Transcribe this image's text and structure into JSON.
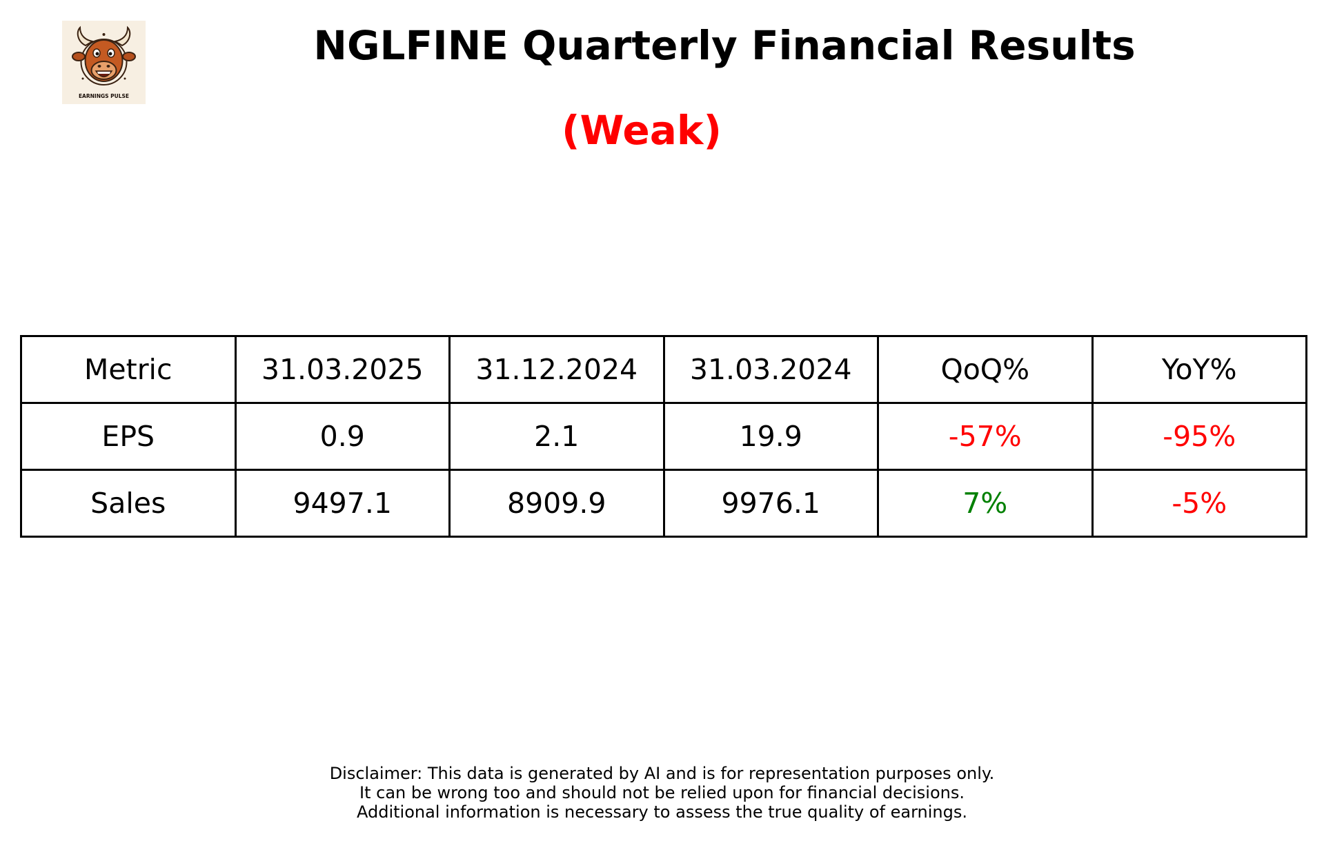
{
  "logo": {
    "text": "EARNINGS PULSE",
    "icon": "bull-mascot-icon",
    "background": "#f7efe2"
  },
  "title": "NGLFINE Quarterly Financial Results",
  "rating": {
    "label": "(Weak)",
    "color": "#ff0000"
  },
  "colors": {
    "positive": "#008000",
    "negative": "#ff0000",
    "neutral": "#000000"
  },
  "chart_data": {
    "type": "table",
    "columns": [
      "Metric",
      "31.03.2025",
      "31.12.2024",
      "31.03.2024",
      "QoQ%",
      "YoY%"
    ],
    "rows": [
      {
        "metric": "EPS",
        "values": [
          "0.9",
          "2.1",
          "19.9"
        ],
        "qoq": "-57%",
        "yoy": "-95%"
      },
      {
        "metric": "Sales",
        "values": [
          "9497.1",
          "8909.9",
          "9976.1"
        ],
        "qoq": "7%",
        "yoy": "-5%"
      }
    ]
  },
  "disclaimer": [
    "Disclaimer: This data is generated by AI and is for representation purposes only.",
    "It can be wrong too and should not be relied upon for financial decisions.",
    "Additional information is necessary to assess the true quality of earnings."
  ]
}
